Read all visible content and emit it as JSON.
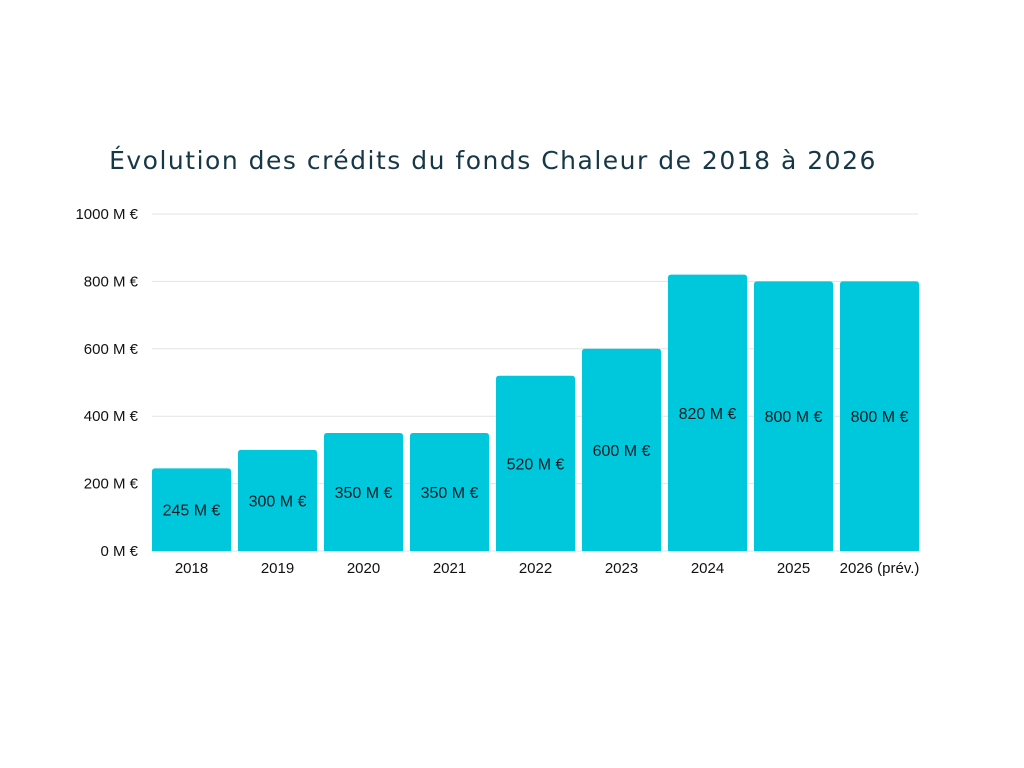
{
  "chart_data": {
    "type": "bar",
    "title": "Évolution des crédits du fonds Chaleur de 2018 à 2026",
    "xlabel": "",
    "ylabel": "",
    "categories": [
      "2018",
      "2019",
      "2020",
      "2021",
      "2022",
      "2023",
      "2024",
      "2025",
      "2026 (prév.)"
    ],
    "values": [
      245,
      300,
      350,
      350,
      520,
      600,
      820,
      800,
      800
    ],
    "data_labels": [
      "245 M €",
      "300 M €",
      "350 M €",
      "350 M €",
      "520 M €",
      "600 M €",
      "820 M €",
      "800 M €",
      "800 M €"
    ],
    "ylim": [
      0,
      1000
    ],
    "yticks": [
      0,
      200,
      400,
      600,
      800,
      1000
    ],
    "ytick_labels": [
      "0 M €",
      "200 M €",
      "400 M €",
      "600 M €",
      "800 M €",
      "1000 M €"
    ],
    "grid": true,
    "legend": "none",
    "bar_color": "#00C8DC",
    "grid_color": "#e3e3e3",
    "title_color": "#163746"
  }
}
